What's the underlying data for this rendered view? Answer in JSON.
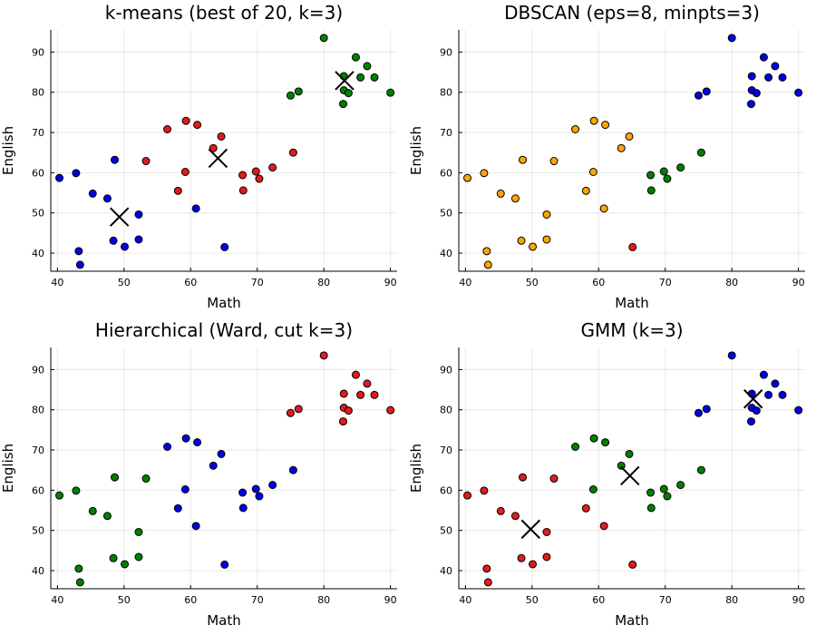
{
  "chart_data": [
    {
      "type": "scatter",
      "title": "k-means (best of 20, k=3)",
      "xlabel": "Math",
      "ylabel": "English",
      "xlim": [
        39,
        91
      ],
      "ylim": [
        35.5,
        95.5
      ],
      "xticks": [
        40,
        50,
        60,
        70,
        80,
        90
      ],
      "yticks": [
        40,
        50,
        60,
        70,
        80,
        90
      ],
      "grid": true,
      "legend": "none",
      "colors": {
        "red": "#e41a1c",
        "green": "#008000",
        "blue": "#0000e6",
        "orange": "#ffa500"
      },
      "points": [
        {
          "x": 80,
          "y": 93.5,
          "color": "green"
        },
        {
          "x": 84.8,
          "y": 88.7,
          "color": "green"
        },
        {
          "x": 86.5,
          "y": 86.5,
          "color": "green"
        },
        {
          "x": 83,
          "y": 84,
          "color": "green"
        },
        {
          "x": 85.5,
          "y": 83.7,
          "color": "green"
        },
        {
          "x": 87.6,
          "y": 83.7,
          "color": "green"
        },
        {
          "x": 83,
          "y": 80.5,
          "color": "green"
        },
        {
          "x": 83.7,
          "y": 79.8,
          "color": "green"
        },
        {
          "x": 76.2,
          "y": 80.2,
          "color": "green"
        },
        {
          "x": 75,
          "y": 79.2,
          "color": "green"
        },
        {
          "x": 82.9,
          "y": 77.1,
          "color": "green"
        },
        {
          "x": 90,
          "y": 79.9,
          "color": "green"
        },
        {
          "x": 59.3,
          "y": 72.9,
          "color": "red"
        },
        {
          "x": 61,
          "y": 71.9,
          "color": "red"
        },
        {
          "x": 56.5,
          "y": 70.8,
          "color": "red"
        },
        {
          "x": 64.6,
          "y": 69,
          "color": "red"
        },
        {
          "x": 63.4,
          "y": 66.1,
          "color": "red"
        },
        {
          "x": 75.4,
          "y": 65,
          "color": "red"
        },
        {
          "x": 53.3,
          "y": 62.9,
          "color": "red"
        },
        {
          "x": 72.3,
          "y": 61.3,
          "color": "red"
        },
        {
          "x": 59.2,
          "y": 60.2,
          "color": "red"
        },
        {
          "x": 69.8,
          "y": 60.3,
          "color": "red"
        },
        {
          "x": 67.8,
          "y": 59.4,
          "color": "red"
        },
        {
          "x": 70.3,
          "y": 58.5,
          "color": "red"
        },
        {
          "x": 58.1,
          "y": 55.5,
          "color": "red"
        },
        {
          "x": 67.9,
          "y": 55.6,
          "color": "red"
        },
        {
          "x": 40.3,
          "y": 58.7,
          "color": "blue"
        },
        {
          "x": 42.8,
          "y": 59.9,
          "color": "blue"
        },
        {
          "x": 48.6,
          "y": 63.2,
          "color": "blue"
        },
        {
          "x": 45.3,
          "y": 54.8,
          "color": "blue"
        },
        {
          "x": 47.5,
          "y": 53.6,
          "color": "blue"
        },
        {
          "x": 60.8,
          "y": 51.1,
          "color": "blue"
        },
        {
          "x": 52.2,
          "y": 49.6,
          "color": "blue"
        },
        {
          "x": 48.4,
          "y": 43.1,
          "color": "blue"
        },
        {
          "x": 52.2,
          "y": 43.4,
          "color": "blue"
        },
        {
          "x": 50.1,
          "y": 41.6,
          "color": "blue"
        },
        {
          "x": 65.1,
          "y": 41.5,
          "color": "blue"
        },
        {
          "x": 43.2,
          "y": 40.5,
          "color": "blue"
        },
        {
          "x": 43.4,
          "y": 37.1,
          "color": "blue"
        }
      ],
      "centers": [
        {
          "x": 49.3,
          "y": 49
        },
        {
          "x": 64.1,
          "y": 63.6
        },
        {
          "x": 83.1,
          "y": 82.9
        }
      ]
    },
    {
      "type": "scatter",
      "title": "DBSCAN (eps=8, minpts=3)",
      "xlabel": "Math",
      "ylabel": "English",
      "xlim": [
        39,
        91
      ],
      "ylim": [
        35.5,
        95.5
      ],
      "xticks": [
        40,
        50,
        60,
        70,
        80,
        90
      ],
      "yticks": [
        40,
        50,
        60,
        70,
        80,
        90
      ],
      "grid": true,
      "legend": "none",
      "colors": {
        "red": "#e41a1c",
        "green": "#008000",
        "blue": "#0000e6",
        "orange": "#ffa500"
      },
      "points": [
        {
          "x": 80,
          "y": 93.5,
          "color": "blue"
        },
        {
          "x": 84.8,
          "y": 88.7,
          "color": "blue"
        },
        {
          "x": 86.5,
          "y": 86.5,
          "color": "blue"
        },
        {
          "x": 83,
          "y": 84,
          "color": "blue"
        },
        {
          "x": 85.5,
          "y": 83.7,
          "color": "blue"
        },
        {
          "x": 87.6,
          "y": 83.7,
          "color": "blue"
        },
        {
          "x": 83,
          "y": 80.5,
          "color": "blue"
        },
        {
          "x": 83.7,
          "y": 79.8,
          "color": "blue"
        },
        {
          "x": 76.2,
          "y": 80.2,
          "color": "blue"
        },
        {
          "x": 75,
          "y": 79.2,
          "color": "blue"
        },
        {
          "x": 82.9,
          "y": 77.1,
          "color": "blue"
        },
        {
          "x": 90,
          "y": 79.9,
          "color": "blue"
        },
        {
          "x": 59.3,
          "y": 72.9,
          "color": "orange"
        },
        {
          "x": 61,
          "y": 71.9,
          "color": "orange"
        },
        {
          "x": 56.5,
          "y": 70.8,
          "color": "orange"
        },
        {
          "x": 64.6,
          "y": 69,
          "color": "orange"
        },
        {
          "x": 63.4,
          "y": 66.1,
          "color": "orange"
        },
        {
          "x": 75.4,
          "y": 65,
          "color": "green"
        },
        {
          "x": 53.3,
          "y": 62.9,
          "color": "orange"
        },
        {
          "x": 72.3,
          "y": 61.3,
          "color": "green"
        },
        {
          "x": 59.2,
          "y": 60.2,
          "color": "orange"
        },
        {
          "x": 69.8,
          "y": 60.3,
          "color": "green"
        },
        {
          "x": 67.8,
          "y": 59.4,
          "color": "green"
        },
        {
          "x": 70.3,
          "y": 58.5,
          "color": "green"
        },
        {
          "x": 58.1,
          "y": 55.5,
          "color": "orange"
        },
        {
          "x": 67.9,
          "y": 55.6,
          "color": "green"
        },
        {
          "x": 40.3,
          "y": 58.7,
          "color": "orange"
        },
        {
          "x": 42.8,
          "y": 59.9,
          "color": "orange"
        },
        {
          "x": 48.6,
          "y": 63.2,
          "color": "orange"
        },
        {
          "x": 45.3,
          "y": 54.8,
          "color": "orange"
        },
        {
          "x": 47.5,
          "y": 53.6,
          "color": "orange"
        },
        {
          "x": 60.8,
          "y": 51.1,
          "color": "orange"
        },
        {
          "x": 52.2,
          "y": 49.6,
          "color": "orange"
        },
        {
          "x": 48.4,
          "y": 43.1,
          "color": "orange"
        },
        {
          "x": 52.2,
          "y": 43.4,
          "color": "orange"
        },
        {
          "x": 50.1,
          "y": 41.6,
          "color": "orange"
        },
        {
          "x": 65.1,
          "y": 41.5,
          "color": "red"
        },
        {
          "x": 43.2,
          "y": 40.5,
          "color": "orange"
        },
        {
          "x": 43.4,
          "y": 37.1,
          "color": "orange"
        }
      ],
      "centers": []
    },
    {
      "type": "scatter",
      "title": "Hierarchical (Ward, cut k=3)",
      "xlabel": "Math",
      "ylabel": "English",
      "xlim": [
        39,
        91
      ],
      "ylim": [
        35.5,
        95.5
      ],
      "xticks": [
        40,
        50,
        60,
        70,
        80,
        90
      ],
      "yticks": [
        40,
        50,
        60,
        70,
        80,
        90
      ],
      "grid": true,
      "legend": "none",
      "colors": {
        "red": "#e41a1c",
        "green": "#008000",
        "blue": "#0000e6",
        "orange": "#ffa500"
      },
      "points": [
        {
          "x": 80,
          "y": 93.5,
          "color": "red"
        },
        {
          "x": 84.8,
          "y": 88.7,
          "color": "red"
        },
        {
          "x": 86.5,
          "y": 86.5,
          "color": "red"
        },
        {
          "x": 83,
          "y": 84,
          "color": "red"
        },
        {
          "x": 85.5,
          "y": 83.7,
          "color": "red"
        },
        {
          "x": 87.6,
          "y": 83.7,
          "color": "red"
        },
        {
          "x": 83,
          "y": 80.5,
          "color": "red"
        },
        {
          "x": 83.7,
          "y": 79.8,
          "color": "red"
        },
        {
          "x": 76.2,
          "y": 80.2,
          "color": "red"
        },
        {
          "x": 75,
          "y": 79.2,
          "color": "red"
        },
        {
          "x": 82.9,
          "y": 77.1,
          "color": "red"
        },
        {
          "x": 90,
          "y": 79.9,
          "color": "red"
        },
        {
          "x": 59.3,
          "y": 72.9,
          "color": "blue"
        },
        {
          "x": 61,
          "y": 71.9,
          "color": "blue"
        },
        {
          "x": 56.5,
          "y": 70.8,
          "color": "blue"
        },
        {
          "x": 64.6,
          "y": 69,
          "color": "blue"
        },
        {
          "x": 63.4,
          "y": 66.1,
          "color": "blue"
        },
        {
          "x": 75.4,
          "y": 65,
          "color": "blue"
        },
        {
          "x": 53.3,
          "y": 62.9,
          "color": "green"
        },
        {
          "x": 72.3,
          "y": 61.3,
          "color": "blue"
        },
        {
          "x": 59.2,
          "y": 60.2,
          "color": "blue"
        },
        {
          "x": 69.8,
          "y": 60.3,
          "color": "blue"
        },
        {
          "x": 67.8,
          "y": 59.4,
          "color": "blue"
        },
        {
          "x": 70.3,
          "y": 58.5,
          "color": "blue"
        },
        {
          "x": 58.1,
          "y": 55.5,
          "color": "blue"
        },
        {
          "x": 67.9,
          "y": 55.6,
          "color": "blue"
        },
        {
          "x": 40.3,
          "y": 58.7,
          "color": "green"
        },
        {
          "x": 42.8,
          "y": 59.9,
          "color": "green"
        },
        {
          "x": 48.6,
          "y": 63.2,
          "color": "green"
        },
        {
          "x": 45.3,
          "y": 54.8,
          "color": "green"
        },
        {
          "x": 47.5,
          "y": 53.6,
          "color": "green"
        },
        {
          "x": 60.8,
          "y": 51.1,
          "color": "blue"
        },
        {
          "x": 52.2,
          "y": 49.6,
          "color": "green"
        },
        {
          "x": 48.4,
          "y": 43.1,
          "color": "green"
        },
        {
          "x": 52.2,
          "y": 43.4,
          "color": "green"
        },
        {
          "x": 50.1,
          "y": 41.6,
          "color": "green"
        },
        {
          "x": 65.1,
          "y": 41.5,
          "color": "blue"
        },
        {
          "x": 43.2,
          "y": 40.5,
          "color": "green"
        },
        {
          "x": 43.4,
          "y": 37.1,
          "color": "green"
        }
      ],
      "centers": []
    },
    {
      "type": "scatter",
      "title": "GMM (k=3)",
      "xlabel": "Math",
      "ylabel": "English",
      "xlim": [
        39,
        91
      ],
      "ylim": [
        35.5,
        95.5
      ],
      "xticks": [
        40,
        50,
        60,
        70,
        80,
        90
      ],
      "yticks": [
        40,
        50,
        60,
        70,
        80,
        90
      ],
      "grid": true,
      "legend": "none",
      "colors": {
        "red": "#e41a1c",
        "green": "#008000",
        "blue": "#0000e6",
        "orange": "#ffa500"
      },
      "points": [
        {
          "x": 80,
          "y": 93.5,
          "color": "blue"
        },
        {
          "x": 84.8,
          "y": 88.7,
          "color": "blue"
        },
        {
          "x": 86.5,
          "y": 86.5,
          "color": "blue"
        },
        {
          "x": 83,
          "y": 84,
          "color": "blue"
        },
        {
          "x": 85.5,
          "y": 83.7,
          "color": "blue"
        },
        {
          "x": 87.6,
          "y": 83.7,
          "color": "blue"
        },
        {
          "x": 83,
          "y": 80.5,
          "color": "blue"
        },
        {
          "x": 83.7,
          "y": 79.8,
          "color": "blue"
        },
        {
          "x": 76.2,
          "y": 80.2,
          "color": "blue"
        },
        {
          "x": 75,
          "y": 79.2,
          "color": "blue"
        },
        {
          "x": 82.9,
          "y": 77.1,
          "color": "blue"
        },
        {
          "x": 90,
          "y": 79.9,
          "color": "blue"
        },
        {
          "x": 59.3,
          "y": 72.9,
          "color": "green"
        },
        {
          "x": 61,
          "y": 71.9,
          "color": "green"
        },
        {
          "x": 56.5,
          "y": 70.8,
          "color": "green"
        },
        {
          "x": 64.6,
          "y": 69,
          "color": "green"
        },
        {
          "x": 63.4,
          "y": 66.1,
          "color": "green"
        },
        {
          "x": 75.4,
          "y": 65,
          "color": "green"
        },
        {
          "x": 53.3,
          "y": 62.9,
          "color": "red"
        },
        {
          "x": 72.3,
          "y": 61.3,
          "color": "green"
        },
        {
          "x": 59.2,
          "y": 60.2,
          "color": "green"
        },
        {
          "x": 69.8,
          "y": 60.3,
          "color": "green"
        },
        {
          "x": 67.8,
          "y": 59.4,
          "color": "green"
        },
        {
          "x": 70.3,
          "y": 58.5,
          "color": "green"
        },
        {
          "x": 58.1,
          "y": 55.5,
          "color": "red"
        },
        {
          "x": 67.9,
          "y": 55.6,
          "color": "green"
        },
        {
          "x": 40.3,
          "y": 58.7,
          "color": "red"
        },
        {
          "x": 42.8,
          "y": 59.9,
          "color": "red"
        },
        {
          "x": 48.6,
          "y": 63.2,
          "color": "red"
        },
        {
          "x": 45.3,
          "y": 54.8,
          "color": "red"
        },
        {
          "x": 47.5,
          "y": 53.6,
          "color": "red"
        },
        {
          "x": 60.8,
          "y": 51.1,
          "color": "red"
        },
        {
          "x": 52.2,
          "y": 49.6,
          "color": "red"
        },
        {
          "x": 48.4,
          "y": 43.1,
          "color": "red"
        },
        {
          "x": 52.2,
          "y": 43.4,
          "color": "red"
        },
        {
          "x": 50.1,
          "y": 41.6,
          "color": "red"
        },
        {
          "x": 65.1,
          "y": 41.5,
          "color": "red"
        },
        {
          "x": 43.2,
          "y": 40.5,
          "color": "red"
        },
        {
          "x": 43.4,
          "y": 37.1,
          "color": "red"
        }
      ],
      "centers": [
        {
          "x": 49.8,
          "y": 50.3
        },
        {
          "x": 64.7,
          "y": 63.6
        },
        {
          "x": 83.2,
          "y": 82.7
        }
      ]
    }
  ]
}
